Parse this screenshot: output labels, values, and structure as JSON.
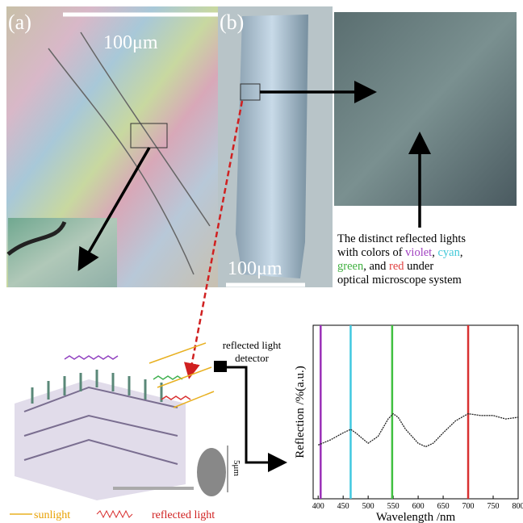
{
  "panels": {
    "a_label": "(a)",
    "b_label": "(b)",
    "scale_a": "100μm",
    "scale_b": "100μm"
  },
  "description": [
    [
      {
        "text": "The distinct reflected lights"
      }
    ],
    [
      {
        "text": "with colors of "
      },
      {
        "text": "violet",
        "color": "#a040c0"
      },
      {
        "text": ", "
      },
      {
        "text": "cyan",
        "color": "#40c8d8"
      },
      {
        "text": ","
      }
    ],
    [
      {
        "text": "green",
        "color": "#40b040"
      },
      {
        "text": ", and "
      },
      {
        "text": "red",
        "color": "#e04040"
      },
      {
        "text": " under"
      }
    ],
    [
      {
        "text": "optical microscope system"
      }
    ]
  ],
  "detector": [
    "reflected light",
    "detector"
  ],
  "scale_small": "5μm",
  "legend": {
    "sunlight": "sunlight",
    "reflected": "reflected light"
  },
  "chart_data": {
    "type": "line",
    "x_label": "Wavelength /nm",
    "y_label": "Reflection /%(a.u.)",
    "x": [
      400,
      425,
      450,
      465,
      475,
      500,
      520,
      540,
      550,
      560,
      575,
      600,
      615,
      630,
      650,
      675,
      700,
      725,
      750,
      775,
      800
    ],
    "series": [
      {
        "color": "#222222",
        "values": [
          0.31,
          0.34,
          0.38,
          0.4,
          0.38,
          0.32,
          0.36,
          0.46,
          0.49,
          0.47,
          0.4,
          0.32,
          0.3,
          0.32,
          0.38,
          0.45,
          0.49,
          0.48,
          0.48,
          0.46,
          0.47
        ]
      }
    ],
    "reference_lines": [
      {
        "x": 405,
        "color": "#9a30b8"
      },
      {
        "x": 465,
        "color": "#40c8e0"
      },
      {
        "x": 548,
        "color": "#40c040"
      },
      {
        "x": 700,
        "color": "#d83030"
      }
    ],
    "xlim": [
      390,
      800
    ],
    "ylim": [
      0,
      1
    ],
    "xticks": [
      400,
      450,
      500,
      550,
      600,
      650,
      700,
      750,
      800
    ]
  }
}
